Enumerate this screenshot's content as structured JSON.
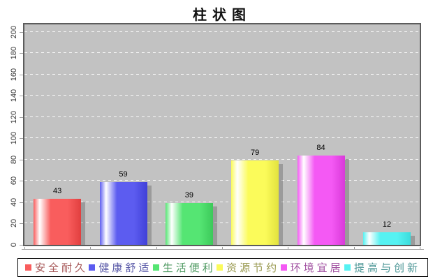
{
  "title": "柱状图",
  "chart_data": {
    "type": "bar",
    "title": "柱状图",
    "categories": [
      "安全耐久",
      "健康舒适",
      "生活便利",
      "资源节约",
      "环境宜居",
      "提高与创新"
    ],
    "values": [
      43,
      59,
      39,
      79,
      84,
      12
    ],
    "value_labels": [
      "43",
      "59",
      "39",
      "79",
      "84",
      "12"
    ],
    "bar_colors": [
      "#f95d5d",
      "#5c5cf0",
      "#55e573",
      "#fbfb5a",
      "#f459f4",
      "#55f2f2"
    ],
    "bar_colors_dark": [
      "#e13f3f",
      "#4040d8",
      "#3cc95a",
      "#e2e23e",
      "#d939d9",
      "#3bdcdc"
    ],
    "legend_text_colors": [
      "#a85a5a",
      "#5a5aa8",
      "#4f9a62",
      "#98984e",
      "#a253a2",
      "#4f9898"
    ],
    "xlabel": "",
    "ylabel": "",
    "yticks": [
      0,
      20,
      40,
      60,
      80,
      100,
      120,
      140,
      160,
      180,
      200
    ],
    "ylim": [
      0,
      200
    ],
    "y_visual_max": 207,
    "grid": true,
    "gridline_style": "white-dashed-horizontal",
    "plot_background": "#c2c2c2",
    "background": "#ffffff",
    "legend_position": "bottom",
    "shadow": "gray drop shadow right-down on bars"
  }
}
